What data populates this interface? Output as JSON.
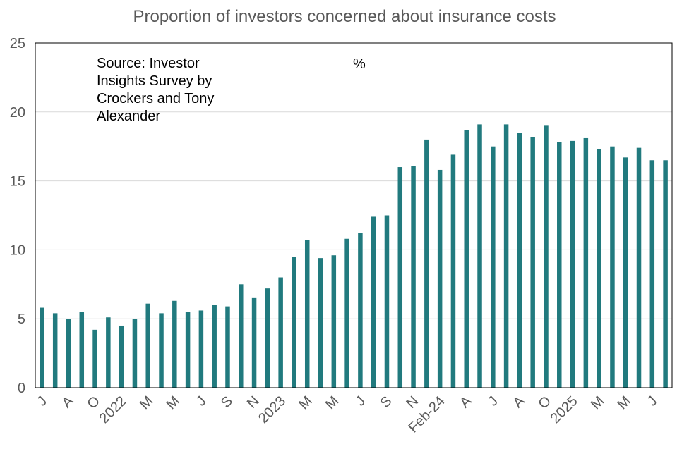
{
  "chart_data": {
    "type": "bar",
    "title": "Proportion of investors concerned about insurance costs",
    "unit_label": "%",
    "source_note": "Source: Investor Insights Survey by Crockers and Tony Alexander",
    "bar_color": "#217A7E",
    "ylim": [
      0,
      25
    ],
    "yticks": [
      0,
      5,
      10,
      15,
      20,
      25
    ],
    "grid": true,
    "values": [
      5.8,
      5.4,
      5.0,
      5.5,
      4.2,
      5.1,
      4.5,
      5.0,
      6.1,
      5.4,
      6.3,
      5.5,
      5.6,
      6.0,
      5.9,
      7.5,
      6.5,
      7.2,
      8.0,
      9.5,
      10.7,
      9.4,
      9.6,
      10.8,
      11.2,
      12.4,
      12.5,
      16.0,
      16.1,
      18.0,
      15.8,
      16.9,
      18.7,
      19.1,
      17.5,
      19.1,
      18.5,
      18.2,
      19.0,
      17.8,
      17.9,
      18.1,
      17.3,
      17.5,
      16.7,
      17.4,
      16.5,
      16.5
    ],
    "x_tick_labels": [
      {
        "index": 0,
        "label": "J"
      },
      {
        "index": 2,
        "label": "A"
      },
      {
        "index": 4,
        "label": "O"
      },
      {
        "index": 6,
        "label": "2022"
      },
      {
        "index": 8,
        "label": "M"
      },
      {
        "index": 10,
        "label": "M"
      },
      {
        "index": 12,
        "label": "J"
      },
      {
        "index": 14,
        "label": "S"
      },
      {
        "index": 16,
        "label": "N"
      },
      {
        "index": 18,
        "label": "2023"
      },
      {
        "index": 20,
        "label": "M"
      },
      {
        "index": 22,
        "label": "M"
      },
      {
        "index": 24,
        "label": "J"
      },
      {
        "index": 26,
        "label": "S"
      },
      {
        "index": 28,
        "label": "N"
      },
      {
        "index": 30,
        "label": "Feb-24"
      },
      {
        "index": 32,
        "label": "A"
      },
      {
        "index": 34,
        "label": "J"
      },
      {
        "index": 36,
        "label": "A"
      },
      {
        "index": 38,
        "label": "O"
      },
      {
        "index": 40,
        "label": "2025"
      },
      {
        "index": 42,
        "label": "M"
      },
      {
        "index": 44,
        "label": "M"
      },
      {
        "index": 46,
        "label": "J"
      }
    ]
  }
}
